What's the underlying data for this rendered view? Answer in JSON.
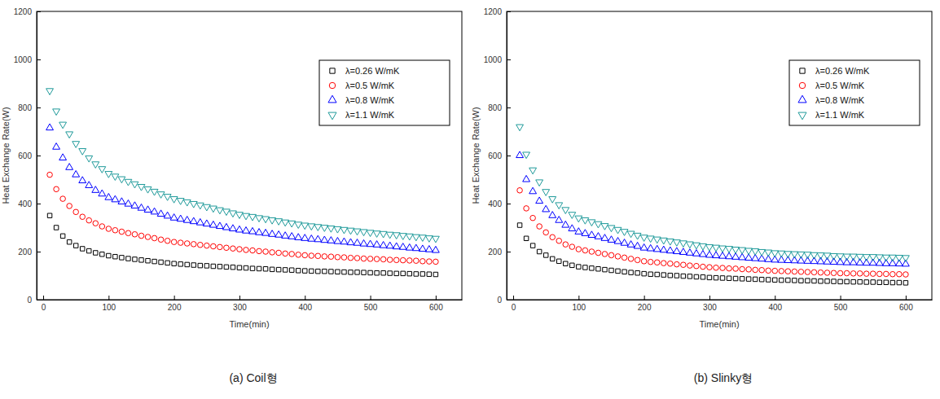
{
  "chart_data": [
    {
      "type": "scatter",
      "title": "(a) Coil형",
      "x_label": "Time(min)",
      "y_label": "Heat Exchange Rate(W)",
      "xlim": [
        -10,
        640
      ],
      "xticks": [
        0,
        100,
        200,
        300,
        400,
        500,
        600
      ],
      "ylim": [
        0,
        1200
      ],
      "yticks": [
        0,
        200,
        400,
        600,
        800,
        1000,
        1200
      ],
      "grid": false,
      "legend": "upper right",
      "x": [
        10,
        20,
        30,
        40,
        50,
        60,
        70,
        80,
        90,
        100,
        110,
        120,
        130,
        140,
        150,
        160,
        170,
        180,
        190,
        200,
        210,
        220,
        230,
        240,
        250,
        260,
        270,
        280,
        290,
        300,
        310,
        320,
        330,
        340,
        350,
        360,
        370,
        380,
        390,
        400,
        410,
        420,
        430,
        440,
        450,
        460,
        470,
        480,
        490,
        500,
        510,
        520,
        530,
        540,
        550,
        560,
        570,
        580,
        590,
        600
      ],
      "series": [
        {
          "name": "λ=0.26 W/mK",
          "color": "#000000",
          "marker": "square",
          "values": [
            350,
            300,
            265,
            240,
            225,
            212,
            203,
            195,
            189,
            183,
            179,
            175,
            171,
            168,
            165,
            162,
            159,
            156,
            153,
            150,
            148,
            146,
            144,
            142,
            141,
            139,
            138,
            136,
            135,
            133,
            132,
            130,
            129,
            128,
            126,
            125,
            124,
            123,
            121,
            120,
            119,
            118,
            118,
            117,
            116,
            115,
            114,
            114,
            113,
            112,
            111,
            111,
            110,
            109,
            109,
            108,
            107,
            107,
            106,
            105
          ]
        },
        {
          "name": "λ=0.5 W/mK",
          "color": "#ff0000",
          "marker": "circle",
          "values": [
            520,
            460,
            420,
            390,
            365,
            345,
            330,
            318,
            305,
            295,
            289,
            283,
            277,
            272,
            266,
            261,
            256,
            250,
            245,
            240,
            237,
            234,
            231,
            228,
            225,
            222,
            219,
            216,
            213,
            210,
            207,
            205,
            202,
            200,
            197,
            195,
            192,
            190,
            187,
            185,
            183,
            182,
            180,
            179,
            177,
            176,
            174,
            173,
            171,
            170,
            169,
            168,
            166,
            165,
            164,
            163,
            162,
            160,
            159,
            158
          ]
        },
        {
          "name": "λ=0.8 W/mK",
          "color": "#0000ff",
          "marker": "triangle-up",
          "values": [
            715,
            635,
            590,
            550,
            520,
            495,
            475,
            455,
            440,
            425,
            416,
            407,
            398,
            390,
            381,
            373,
            365,
            356,
            348,
            340,
            335,
            330,
            325,
            320,
            315,
            310,
            305,
            300,
            295,
            290,
            286,
            283,
            279,
            276,
            272,
            269,
            265,
            262,
            258,
            255,
            252,
            250,
            247,
            245,
            242,
            240,
            237,
            235,
            232,
            230,
            228,
            225,
            223,
            220,
            218,
            215,
            213,
            210,
            208,
            205
          ]
        },
        {
          "name": "λ=1.1 W/mK",
          "color": "#1f9a9a",
          "marker": "triangle-down",
          "values": [
            870,
            785,
            730,
            690,
            650,
            620,
            590,
            565,
            545,
            525,
            514,
            503,
            492,
            482,
            471,
            461,
            451,
            440,
            430,
            420,
            413,
            407,
            400,
            394,
            387,
            381,
            374,
            368,
            361,
            355,
            350,
            346,
            341,
            337,
            332,
            328,
            323,
            319,
            314,
            310,
            307,
            304,
            301,
            298,
            295,
            292,
            289,
            286,
            283,
            280,
            277,
            275,
            272,
            270,
            267,
            265,
            262,
            260,
            257,
            255
          ]
        }
      ]
    },
    {
      "type": "scatter",
      "title": "(b) Slinky형",
      "x_label": "Time(min)",
      "y_label": "Heat Exchange Rate(W)",
      "xlim": [
        -10,
        640
      ],
      "xticks": [
        0,
        100,
        200,
        300,
        400,
        500,
        600
      ],
      "ylim": [
        0,
        1200
      ],
      "yticks": [
        0,
        200,
        400,
        600,
        800,
        1000,
        1200
      ],
      "grid": false,
      "legend": "upper right",
      "x": [
        10,
        20,
        30,
        40,
        50,
        60,
        70,
        80,
        90,
        100,
        110,
        120,
        130,
        140,
        150,
        160,
        170,
        180,
        190,
        200,
        210,
        220,
        230,
        240,
        250,
        260,
        270,
        280,
        290,
        300,
        310,
        320,
        330,
        340,
        350,
        360,
        370,
        380,
        390,
        400,
        410,
        420,
        430,
        440,
        450,
        460,
        470,
        480,
        490,
        500,
        510,
        520,
        530,
        540,
        550,
        560,
        570,
        580,
        590,
        600
      ],
      "series": [
        {
          "name": "λ=0.26 W/mK",
          "color": "#000000",
          "marker": "square",
          "values": [
            310,
            255,
            225,
            200,
            185,
            170,
            160,
            150,
            143,
            137,
            134,
            131,
            128,
            125,
            122,
            119,
            116,
            113,
            111,
            108,
            106,
            105,
            103,
            101,
            100,
            98,
            97,
            95,
            94,
            92,
            91,
            90,
            89,
            88,
            87,
            86,
            85,
            84,
            83,
            82,
            81,
            81,
            80,
            79,
            79,
            78,
            77,
            77,
            76,
            75,
            75,
            74,
            74,
            73,
            73,
            72,
            72,
            71,
            71,
            70
          ]
        },
        {
          "name": "λ=0.5 W/mK",
          "color": "#ff0000",
          "marker": "circle",
          "values": [
            455,
            380,
            340,
            305,
            280,
            260,
            245,
            230,
            220,
            210,
            205,
            200,
            195,
            190,
            185,
            180,
            175,
            170,
            165,
            160,
            157,
            155,
            152,
            150,
            147,
            145,
            142,
            140,
            137,
            135,
            133,
            132,
            130,
            129,
            127,
            126,
            124,
            123,
            121,
            120,
            119,
            118,
            117,
            116,
            115,
            114,
            113,
            112,
            111,
            110,
            110,
            109,
            109,
            108,
            108,
            107,
            107,
            106,
            106,
            105
          ]
        },
        {
          "name": "λ=0.8 W/mK",
          "color": "#0000ff",
          "marker": "triangle-up",
          "values": [
            600,
            500,
            450,
            410,
            375,
            350,
            330,
            310,
            295,
            282,
            275,
            268,
            262,
            255,
            248,
            242,
            235,
            228,
            222,
            215,
            212,
            209,
            206,
            203,
            200,
            197,
            194,
            191,
            188,
            185,
            183,
            181,
            179,
            177,
            175,
            173,
            171,
            169,
            167,
            165,
            164,
            163,
            162,
            161,
            160,
            159,
            158,
            157,
            156,
            155,
            154,
            154,
            153,
            152,
            152,
            151,
            150,
            150,
            149,
            148
          ]
        },
        {
          "name": "λ=1.1 W/mK",
          "color": "#1f9a9a",
          "marker": "triangle-down",
          "values": [
            720,
            605,
            540,
            490,
            450,
            420,
            395,
            375,
            355,
            340,
            332,
            324,
            316,
            308,
            300,
            292,
            284,
            276,
            268,
            260,
            256,
            252,
            248,
            244,
            240,
            236,
            232,
            228,
            224,
            220,
            218,
            215,
            213,
            210,
            208,
            205,
            203,
            200,
            198,
            195,
            194,
            192,
            191,
            190,
            189,
            187,
            186,
            185,
            183,
            182,
            181,
            181,
            180,
            179,
            179,
            178,
            177,
            177,
            176,
            175
          ]
        }
      ]
    }
  ]
}
